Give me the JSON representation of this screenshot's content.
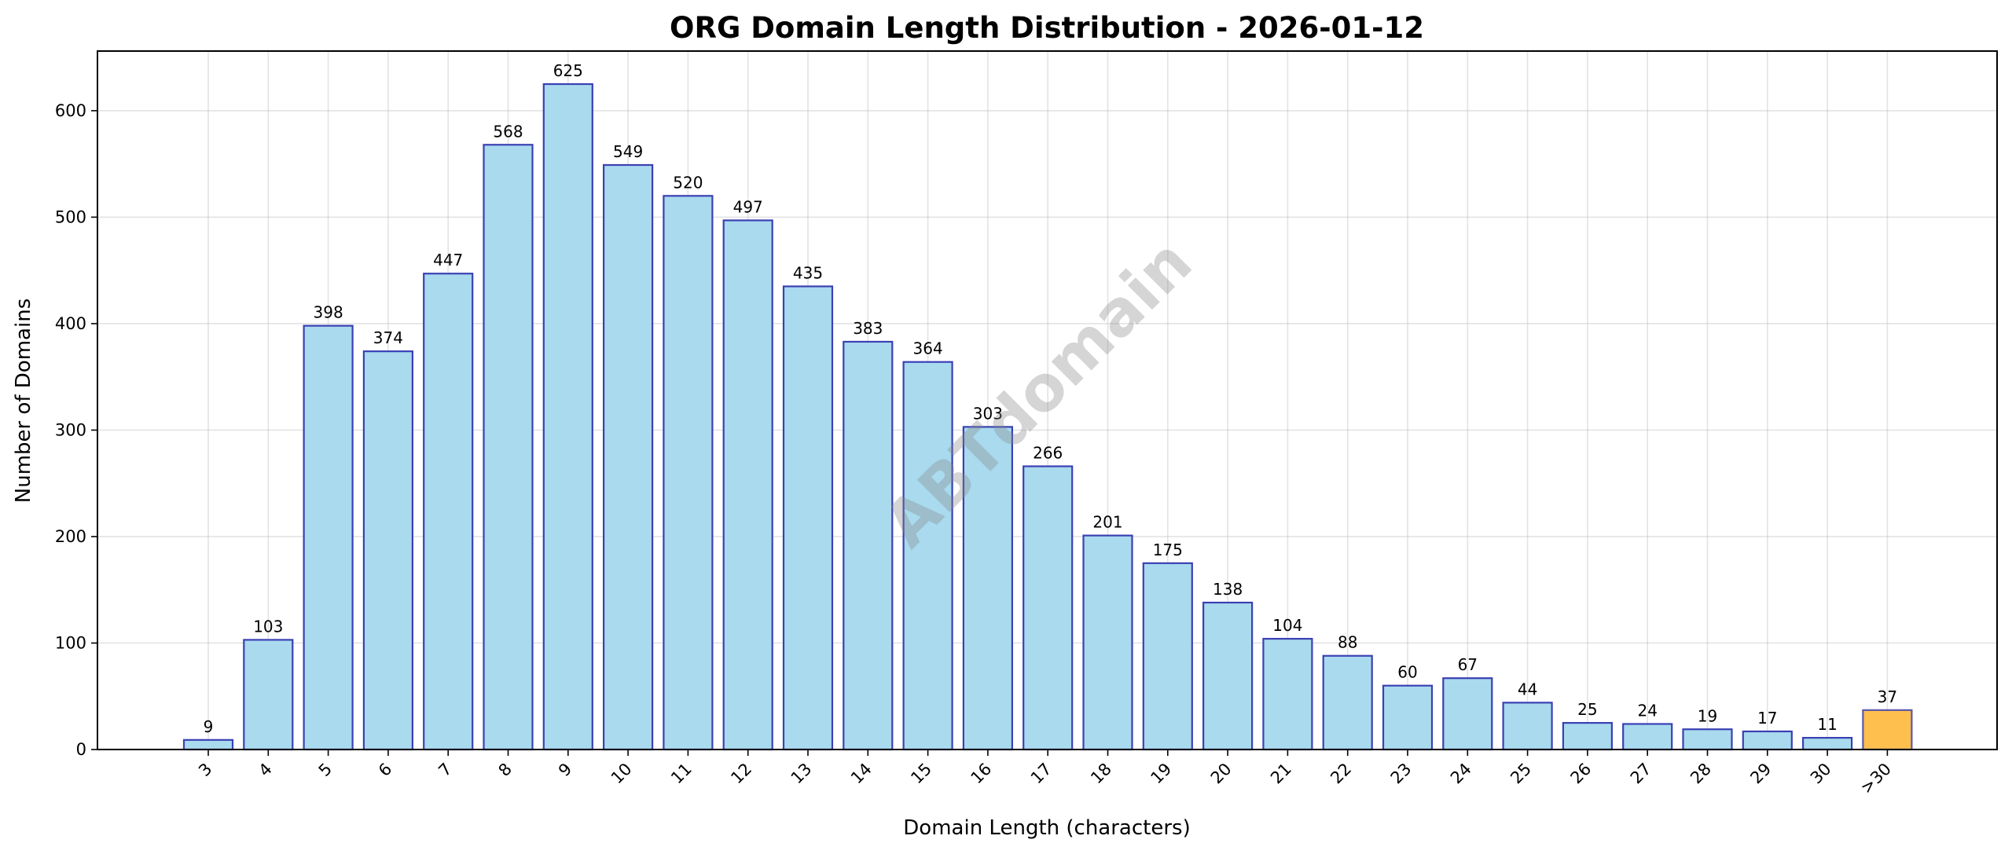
{
  "chart_data": {
    "type": "bar",
    "title": "ORG Domain Length Distribution - 2026-01-12",
    "xlabel": "Domain Length (characters)",
    "ylabel": "Number of Domains",
    "categories": [
      "3",
      "4",
      "5",
      "6",
      "7",
      "8",
      "9",
      "10",
      "11",
      "12",
      "13",
      "14",
      "15",
      "16",
      "17",
      "18",
      "19",
      "20",
      "21",
      "22",
      "23",
      "24",
      "25",
      "26",
      "27",
      "28",
      "29",
      "30",
      ">30"
    ],
    "values": [
      9,
      103,
      398,
      374,
      447,
      568,
      625,
      549,
      520,
      497,
      435,
      383,
      364,
      303,
      266,
      201,
      175,
      138,
      104,
      88,
      60,
      67,
      44,
      25,
      24,
      19,
      17,
      11,
      37
    ],
    "ylim": [
      0,
      656
    ],
    "yticks": [
      0,
      100,
      200,
      300,
      400,
      500,
      600
    ],
    "grid": true,
    "data_labels": true,
    "colors": {
      "bar": "#a9daee",
      "bar_edge": "#3b40b3",
      "highlight_bar": "#ffbf4f",
      "highlight_edge": "#5a58a8"
    },
    "highlight_category": ">30",
    "watermark": "ABTdomain"
  }
}
